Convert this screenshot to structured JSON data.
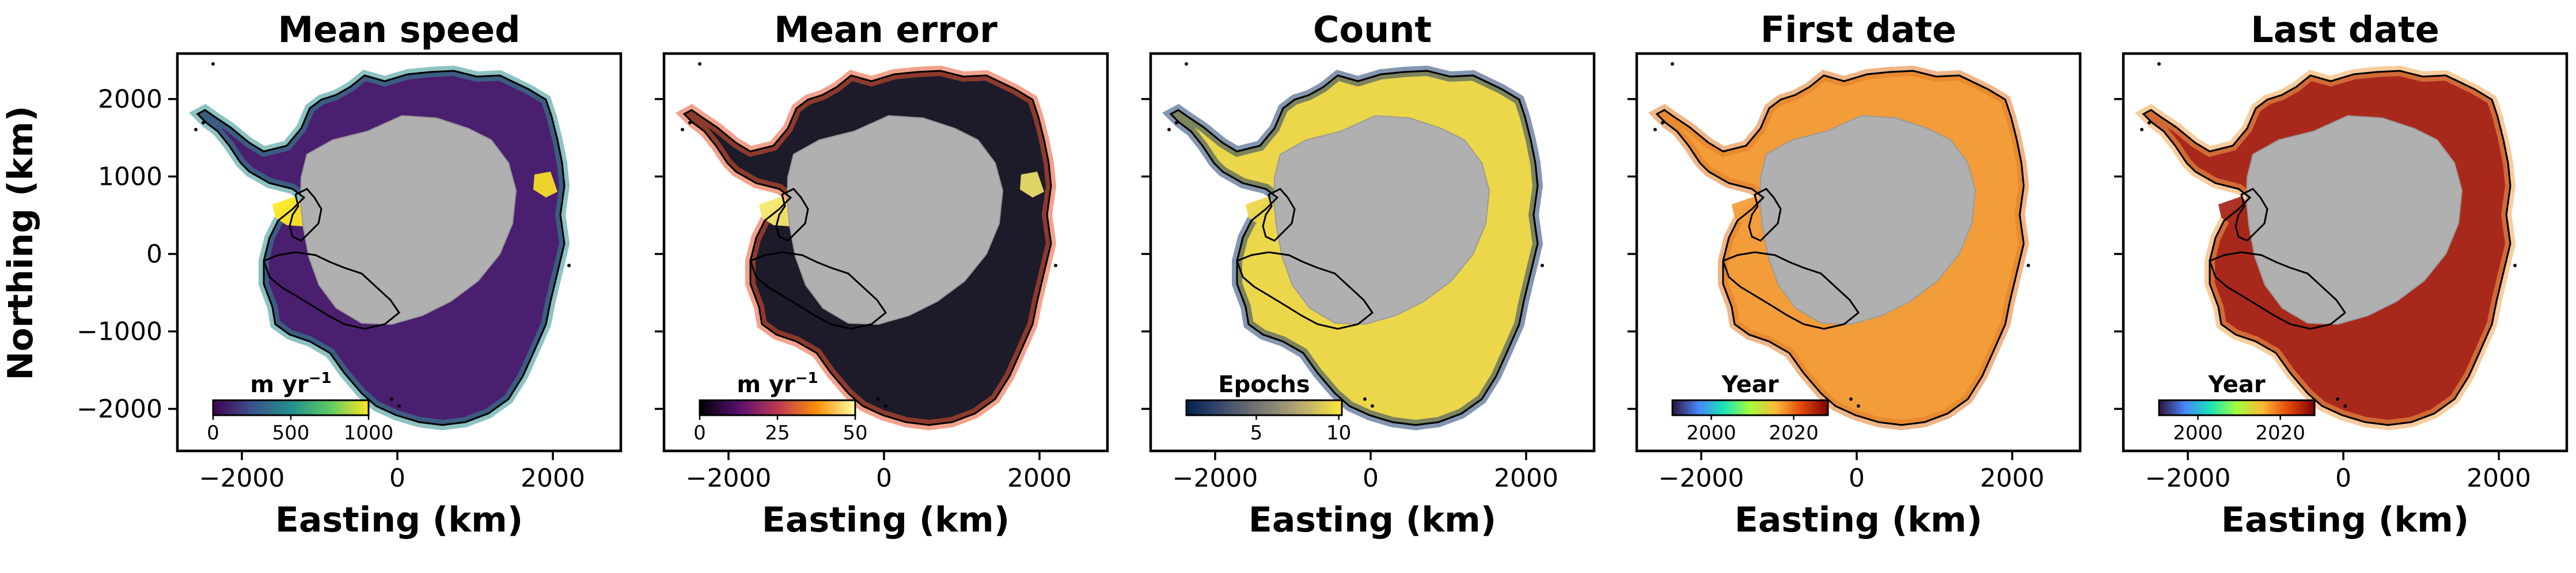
{
  "figure": {
    "ylabel": "Northing (km)",
    "xlabel": "Easting (km)",
    "x_ticks": [
      "-2000",
      "0",
      "2000"
    ],
    "y_ticks": [
      "2000",
      "1000",
      "0",
      "-1000",
      "-2000"
    ],
    "panels": [
      {
        "title": "Mean speed",
        "colorbar": {
          "label_main": "m yr",
          "label_sup": "−1",
          "ticks": [
            "0",
            "500",
            "1000"
          ],
          "colormap": "viridis",
          "colors": [
            "#440154",
            "#3b528b",
            "#21908d",
            "#5dc963",
            "#fde725"
          ]
        },
        "fill": "#4b1f6f",
        "rim": "#2f8f8f",
        "rim_extra": "#fde725"
      },
      {
        "title": "Mean error",
        "colorbar": {
          "label_main": "m yr",
          "label_sup": "−1",
          "ticks": [
            "0",
            "25",
            "50"
          ],
          "colormap": "inferno",
          "colors": [
            "#000004",
            "#57106e",
            "#bc3754",
            "#f98e09",
            "#fcffa4"
          ]
        },
        "fill": "#1d1a2a",
        "rim": "#e8552d",
        "rim_extra": "#f6e86e"
      },
      {
        "title": "Count",
        "colorbar": {
          "label_main": "Epochs",
          "label_sup": "",
          "ticks": [
            "5",
            "10"
          ],
          "colormap": "cividis",
          "colors": [
            "#00224e",
            "#35456c",
            "#666970",
            "#948e77",
            "#c8b866",
            "#fee838"
          ]
        },
        "fill": "#ecd74a",
        "rim": "#1f3f70",
        "rim_extra": "#ecd74a"
      },
      {
        "title": "First date",
        "colorbar": {
          "label_main": "Year",
          "label_sup": "",
          "ticks": [
            "2000",
            "2020"
          ],
          "colormap": "turbo",
          "colors": [
            "#30123b",
            "#4686fb",
            "#1be5b5",
            "#a4fc3c",
            "#fbb938",
            "#e4460a",
            "#7a0403"
          ]
        },
        "fill": "#f29d3a",
        "rim": "#e07a26",
        "rim_extra": "#f29d3a"
      },
      {
        "title": "Last date",
        "colorbar": {
          "label_main": "Year",
          "label_sup": "",
          "ticks": [
            "2000",
            "2020"
          ],
          "colormap": "turbo",
          "colors": [
            "#30123b",
            "#4686fb",
            "#1be5b5",
            "#a4fc3c",
            "#fbb938",
            "#e4460a",
            "#7a0403"
          ]
        },
        "fill": "#a9281c",
        "rim": "#f3a24a",
        "rim_extra": "#a9281c"
      }
    ]
  }
}
